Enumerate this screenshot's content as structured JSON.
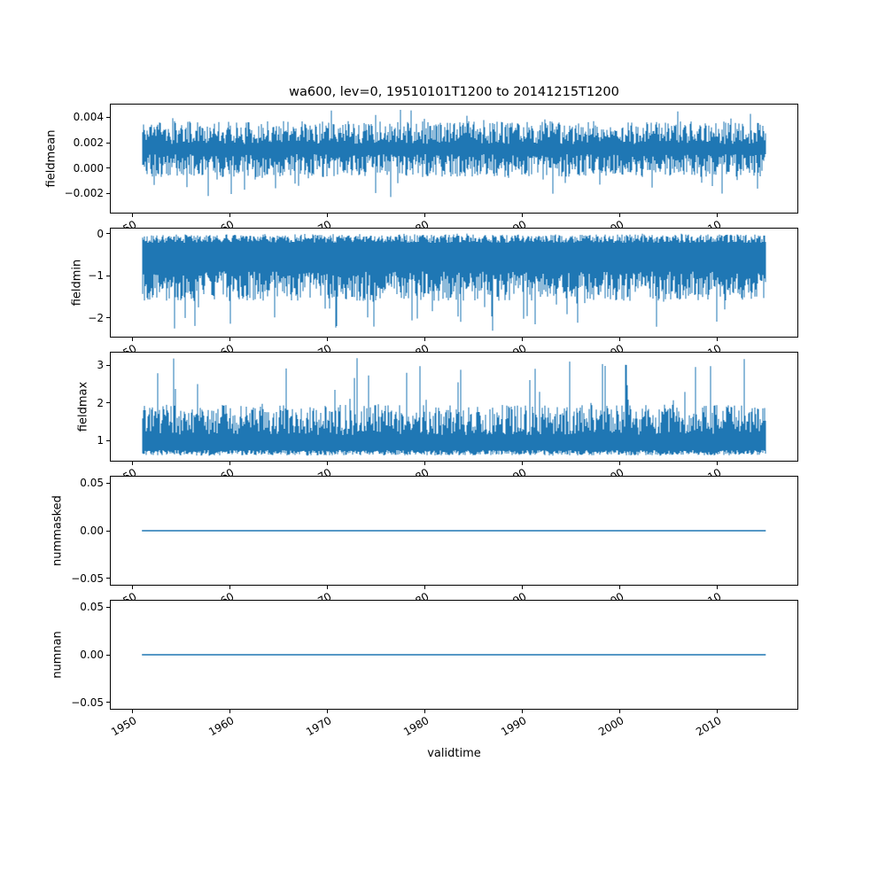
{
  "title": "wa600, lev=0, 19510101T1200 to 20141215T1200",
  "xlabel": "validtime",
  "accent_color": "#1f77b4",
  "xlim": [
    1947.8,
    2018.2
  ],
  "x_start": 1951.0,
  "x_end": 2014.96,
  "x_ticks": [
    1950,
    1960,
    1970,
    1980,
    1990,
    2000,
    2010
  ],
  "x_tick_labels": [
    "1950",
    "1960",
    "1970",
    "1980",
    "1990",
    "2000",
    "2010"
  ],
  "chart_data": [
    {
      "type": "line",
      "ylabel": "fieldmean",
      "ylim": [
        -0.0035,
        0.005
      ],
      "yticks": [
        0.004,
        0.002,
        0.0,
        -0.002
      ],
      "ytick_labels": [
        "0.004",
        "0.002",
        "0.000",
        "−0.002"
      ],
      "series": {
        "name": "fieldmean",
        "pattern": "noise-band",
        "mean": 0.0015,
        "min": -0.0023,
        "max": 0.0047,
        "band_low_base": 0.0002,
        "band_low_jitter": 0.0009,
        "band_high_base": 0.0028,
        "band_high_jitter": 0.0009,
        "spike_prob": 0.05,
        "seed": 11
      }
    },
    {
      "type": "line",
      "ylabel": "fieldmin",
      "ylim": [
        -2.45,
        0.117
      ],
      "yticks": [
        0,
        -1,
        -2
      ],
      "ytick_labels": [
        "0",
        "−1",
        "−2"
      ],
      "series": {
        "name": "fieldmin",
        "pattern": "noise-band",
        "mean": -0.75,
        "min": -2.33,
        "max": 0.0,
        "band_low_base": -1.25,
        "band_low_jitter": 0.35,
        "band_high_base": -0.12,
        "band_high_jitter": 0.1,
        "spike_prob": 0.06,
        "seed": 22
      }
    },
    {
      "type": "line",
      "ylabel": "fieldmax",
      "ylim": [
        0.47,
        3.33
      ],
      "yticks": [
        3,
        2,
        1
      ],
      "ytick_labels": [
        "3",
        "2",
        "1"
      ],
      "series": {
        "name": "fieldmax",
        "pattern": "noise-band",
        "mean": 1.1,
        "min": 0.6,
        "max": 3.2,
        "band_low_base": 0.68,
        "band_low_jitter": 0.07,
        "band_high_base": 1.55,
        "band_high_jitter": 0.4,
        "spike_prob": 0.05,
        "seed": 33
      }
    },
    {
      "type": "line",
      "ylabel": "nummasked",
      "ylim": [
        -0.0565,
        0.0565
      ],
      "yticks": [
        0.05,
        0.0,
        -0.05
      ],
      "ytick_labels": [
        "0.05",
        "0.00",
        "−0.05"
      ],
      "series": {
        "name": "nummasked",
        "pattern": "constant",
        "value": 0.0,
        "seed": 44
      }
    },
    {
      "type": "line",
      "ylabel": "numnan",
      "ylim": [
        -0.0565,
        0.0565
      ],
      "yticks": [
        0.05,
        0.0,
        -0.05
      ],
      "ytick_labels": [
        "0.05",
        "0.00",
        "−0.05"
      ],
      "series": {
        "name": "numnan",
        "pattern": "constant",
        "value": 0.0,
        "seed": 55
      }
    }
  ]
}
